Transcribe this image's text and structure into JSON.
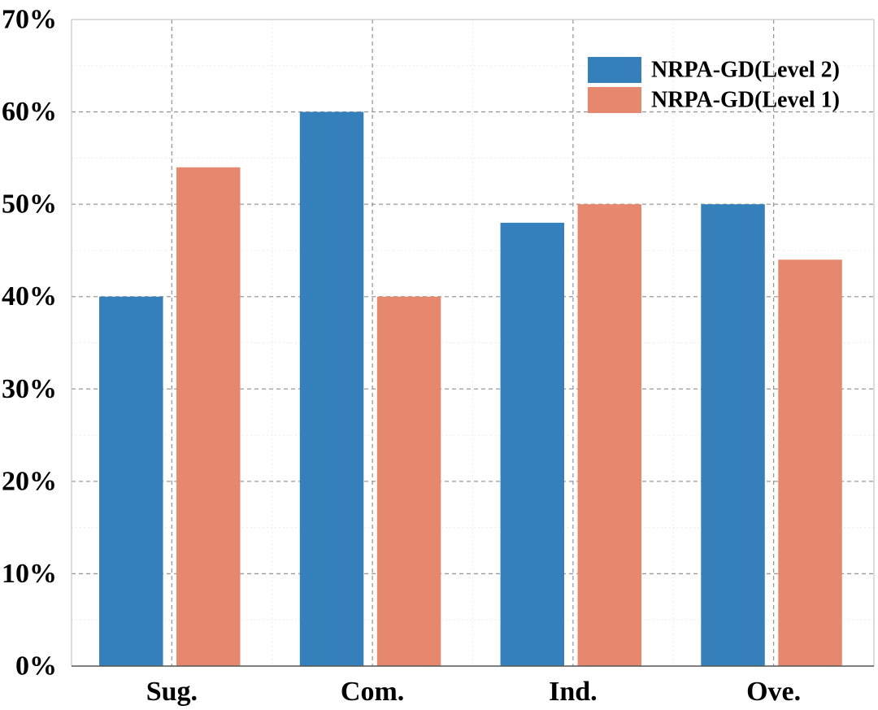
{
  "chart_data": {
    "type": "bar",
    "title": "",
    "xlabel": "",
    "ylabel": "",
    "categories": [
      "Sug.",
      "Com.",
      "Ind.",
      "Ove."
    ],
    "series": [
      {
        "name": "NRPA-GD(Level 2)",
        "color": "#3580BB",
        "values": [
          40,
          60,
          48,
          50
        ]
      },
      {
        "name": "NRPA-GD(Level 1)",
        "color": "#E6886D",
        "values": [
          54,
          40,
          50,
          44
        ]
      }
    ],
    "ylim": [
      0,
      70
    ],
    "yticks": [
      0,
      10,
      20,
      30,
      40,
      50,
      60,
      70
    ],
    "ytick_labels": [
      "0%",
      "10%",
      "20%",
      "30%",
      "40%",
      "50%",
      "60%",
      "70%"
    ],
    "grid": true,
    "legend_position": "top-right"
  }
}
